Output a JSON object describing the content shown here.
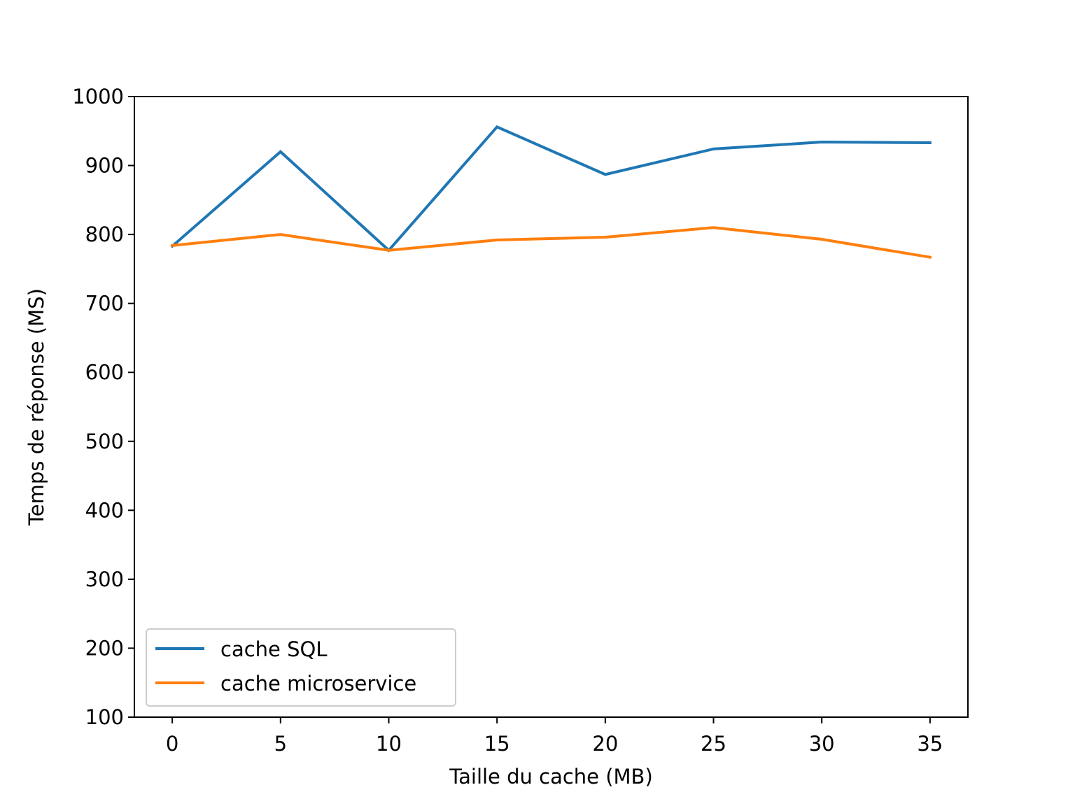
{
  "chart_data": {
    "type": "line",
    "title": "",
    "xlabel": "Taille du cache (MB)",
    "ylabel": "Temps de réponse (MS)",
    "x": [
      0,
      5,
      10,
      15,
      20,
      25,
      30,
      35
    ],
    "xticks": [
      "0",
      "5",
      "10",
      "15",
      "20",
      "25",
      "30",
      "35"
    ],
    "yticks": [
      "100",
      "200",
      "300",
      "400",
      "500",
      "600",
      "700",
      "800",
      "900",
      "1000"
    ],
    "xlim": [
      -1.75,
      36.75
    ],
    "ylim": [
      100,
      1000
    ],
    "grid": false,
    "legend_position": "lower-left",
    "series": [
      {
        "name": "cache SQL",
        "color": "#1f77b4",
        "values": [
          783,
          920,
          777,
          956,
          887,
          924,
          934,
          933
        ]
      },
      {
        "name": "cache microservice",
        "color": "#ff7f0e",
        "values": [
          784,
          800,
          777,
          792,
          796,
          810,
          793,
          767
        ]
      }
    ]
  }
}
